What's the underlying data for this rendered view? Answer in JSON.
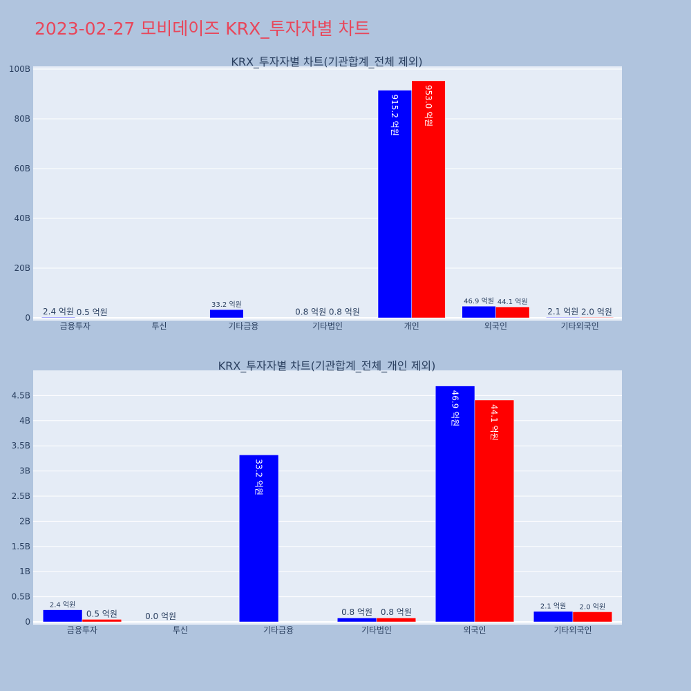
{
  "page": {
    "title": "2023-02-27 모비데이즈 KRX_투자자별 차트"
  },
  "colors": {
    "background": "#b0c4de",
    "plot_bg": "#e5ecf6",
    "title": "#e8465a",
    "series_a": "#0000ff",
    "series_b": "#ff0000"
  },
  "chart_data": [
    {
      "type": "bar",
      "title": "KRX_투자자별 차트(기관합계_전체 제외)",
      "categories": [
        "금융투자",
        "투신",
        "기타금융",
        "기타법인",
        "개인",
        "외국인",
        "기타외국인"
      ],
      "series": [
        {
          "color": "#0000ff",
          "values": [
            240000000,
            0,
            3320000000,
            80000000,
            91520000000,
            4690000000,
            210000000
          ],
          "labels": [
            "2.4 억원",
            "",
            "33.2 억원",
            "0.8 억원",
            "915.2 억원",
            "46.9 억원",
            "2.1 억원"
          ]
        },
        {
          "color": "#ff0000",
          "values": [
            50000000,
            0,
            0,
            80000000,
            95300000000,
            4410000000,
            200000000
          ],
          "labels": [
            "0.5 억원",
            "",
            "",
            "0.8 억원",
            "953.0 억원",
            "44.1 억원",
            "2.0 억원"
          ]
        }
      ],
      "ylim": [
        0,
        100000000000
      ],
      "yticks": [
        0,
        20000000000,
        40000000000,
        60000000000,
        80000000000,
        100000000000
      ],
      "ytick_labels": [
        "0",
        "20B",
        "40B",
        "60B",
        "80B",
        "100B"
      ],
      "grid": true
    },
    {
      "type": "bar",
      "title": "KRX_투자자별 차트(기관합계_전체_개인 제외)",
      "categories": [
        "금융투자",
        "투신",
        "기타금융",
        "기타법인",
        "외국인",
        "기타외국인"
      ],
      "series": [
        {
          "color": "#0000ff",
          "values": [
            240000000,
            0,
            3320000000,
            80000000,
            4690000000,
            210000000
          ],
          "labels": [
            "2.4 억원",
            "0.0 억원",
            "33.2 억원",
            "0.8 억원",
            "46.9 억원",
            "2.1 억원"
          ]
        },
        {
          "color": "#ff0000",
          "values": [
            50000000,
            0,
            0,
            80000000,
            4410000000,
            200000000
          ],
          "labels": [
            "0.5 억원",
            "",
            "",
            "0.8 억원",
            "44.1 억원",
            "2.0 억원"
          ]
        }
      ],
      "ylim": [
        0,
        5000000000
      ],
      "yticks": [
        0,
        500000000,
        1000000000,
        1500000000,
        2000000000,
        2500000000,
        3000000000,
        3500000000,
        4000000000,
        4500000000
      ],
      "ytick_labels": [
        "0",
        "0.5B",
        "1B",
        "1.5B",
        "2B",
        "2.5B",
        "3B",
        "3.5B",
        "4B",
        "4.5B"
      ],
      "grid": true
    }
  ]
}
